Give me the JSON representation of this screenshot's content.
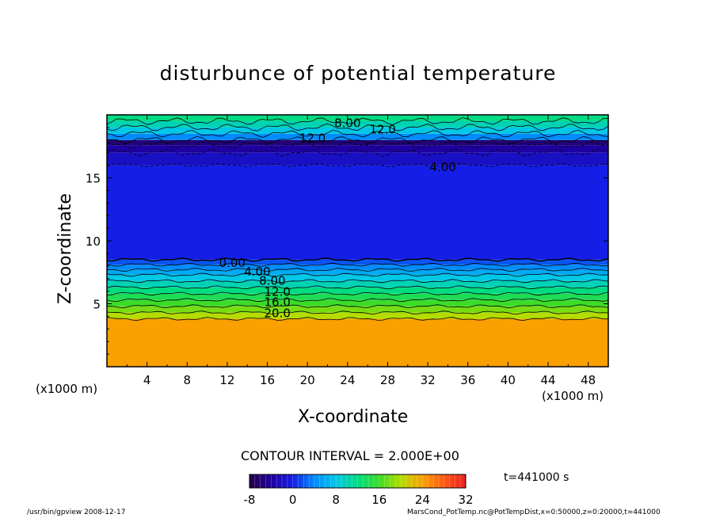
{
  "chart_data": {
    "type": "heatmap",
    "title": "disturbunce of potential temperature",
    "xlabel": "X-coordinate",
    "ylabel": "Z-coordinate",
    "x_unit": "(x1000 m)",
    "x_ticks": [
      4,
      8,
      12,
      16,
      20,
      24,
      28,
      32,
      36,
      40,
      44,
      48
    ],
    "y_ticks": [
      5,
      10,
      15
    ],
    "xlim": [
      0,
      50
    ],
    "ylim": [
      0,
      20
    ],
    "contour_labels": [
      {
        "text": "8.00",
        "x": 24,
        "z": 19.4
      },
      {
        "text": "12.0",
        "x": 27.5,
        "z": 18.9
      },
      {
        "text": "12.0",
        "x": 20.5,
        "z": 18.2
      },
      {
        "text": "4.00",
        "x": 33.5,
        "z": 15.9
      },
      {
        "text": "0.00",
        "x": 12.5,
        "z": 8.3
      },
      {
        "text": "4.00",
        "x": 15,
        "z": 7.6
      },
      {
        "text": "8.00",
        "x": 16.5,
        "z": 6.9
      },
      {
        "text": "12.0",
        "x": 17,
        "z": 6.0
      },
      {
        "text": "16.0",
        "x": 17,
        "z": 5.2
      },
      {
        "text": "20.0",
        "x": 17,
        "z": 4.3
      }
    ],
    "contour_interval": "CONTOUR INTERVAL = 2.000E+00",
    "colorbar": {
      "min": -8,
      "max": 32,
      "ticks": [
        "-8",
        "0",
        "8",
        "16",
        "24",
        "32"
      ]
    },
    "time_label": "t=441000 s",
    "field_bands": [
      {
        "z0": 0,
        "z1": 3.8,
        "value": 24
      },
      {
        "z0": 3.8,
        "z1": 4.3,
        "value": 20
      },
      {
        "z0": 4.3,
        "z1": 4.8,
        "value": 18
      },
      {
        "z0": 4.8,
        "z1": 5.3,
        "value": 16
      },
      {
        "z0": 5.3,
        "z1": 5.8,
        "value": 14
      },
      {
        "z0": 5.8,
        "z1": 6.3,
        "value": 12
      },
      {
        "z0": 6.3,
        "z1": 6.8,
        "value": 10
      },
      {
        "z0": 6.8,
        "z1": 7.3,
        "value": 8
      },
      {
        "z0": 7.3,
        "z1": 7.7,
        "value": 6
      },
      {
        "z0": 7.7,
        "z1": 8.1,
        "value": 4
      },
      {
        "z0": 8.1,
        "z1": 8.5,
        "value": 2
      },
      {
        "z0": 8.5,
        "z1": 16.0,
        "value": 0
      },
      {
        "z0": 16.0,
        "z1": 17.0,
        "value": -2
      },
      {
        "z0": 17.0,
        "z1": 17.6,
        "value": -4
      },
      {
        "z0": 17.6,
        "z1": 18.0,
        "value": -6
      },
      {
        "z0": 18.0,
        "z1": 18.5,
        "value": 4
      },
      {
        "z0": 18.5,
        "z1": 19.0,
        "value": 8
      },
      {
        "z0": 19.0,
        "z1": 19.5,
        "value": 10
      },
      {
        "z0": 19.5,
        "z1": 20.0,
        "value": 12
      }
    ]
  },
  "footer": {
    "left": "/usr/bin/gpview   2008-12-17",
    "right": "MarsCond_PotTemp.nc@PotTempDist,x=0:50000,z=0:20000,t=441000"
  }
}
